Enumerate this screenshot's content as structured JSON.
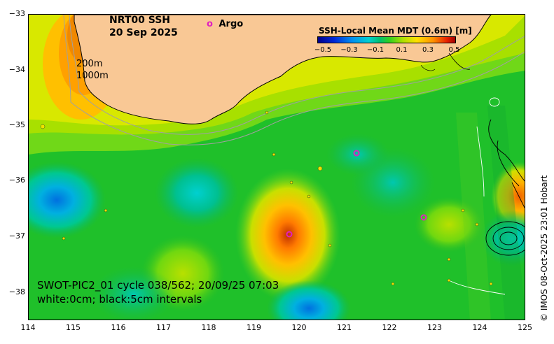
{
  "title": {
    "line1": "NRT00 SSH",
    "line2": "20 Sep 2025"
  },
  "argo_legend": {
    "symbol": "o",
    "label": "Argo",
    "color": "#e020c0"
  },
  "isobaths": {
    "shallow": "200m",
    "deep": "1000m"
  },
  "colorbar": {
    "label": "SSH-Local Mean MDT (0.6m) [m]",
    "ticks": [
      "−0.5",
      "−0.3",
      "−0.1",
      "0.1",
      "0.3",
      "0.5"
    ]
  },
  "x_axis": {
    "ticks": [
      "114",
      "115",
      "116",
      "117",
      "118",
      "119",
      "120",
      "121",
      "122",
      "123",
      "124",
      "125"
    ]
  },
  "y_axis": {
    "ticks": [
      "−33",
      "−34",
      "−35",
      "−36",
      "−37",
      "−38"
    ]
  },
  "swot": {
    "line1": "SWOT-PIC2_01 cycle 038/562; 20/09/25 07:03",
    "line2": "white:0cm; black:5cm intervals"
  },
  "credit": "© IMOS 08-Oct-2025 23:01 Hobart",
  "colors": {
    "land": "#f9c895",
    "ocean_base": "#1fc02a",
    "argo": "#e020c0"
  }
}
